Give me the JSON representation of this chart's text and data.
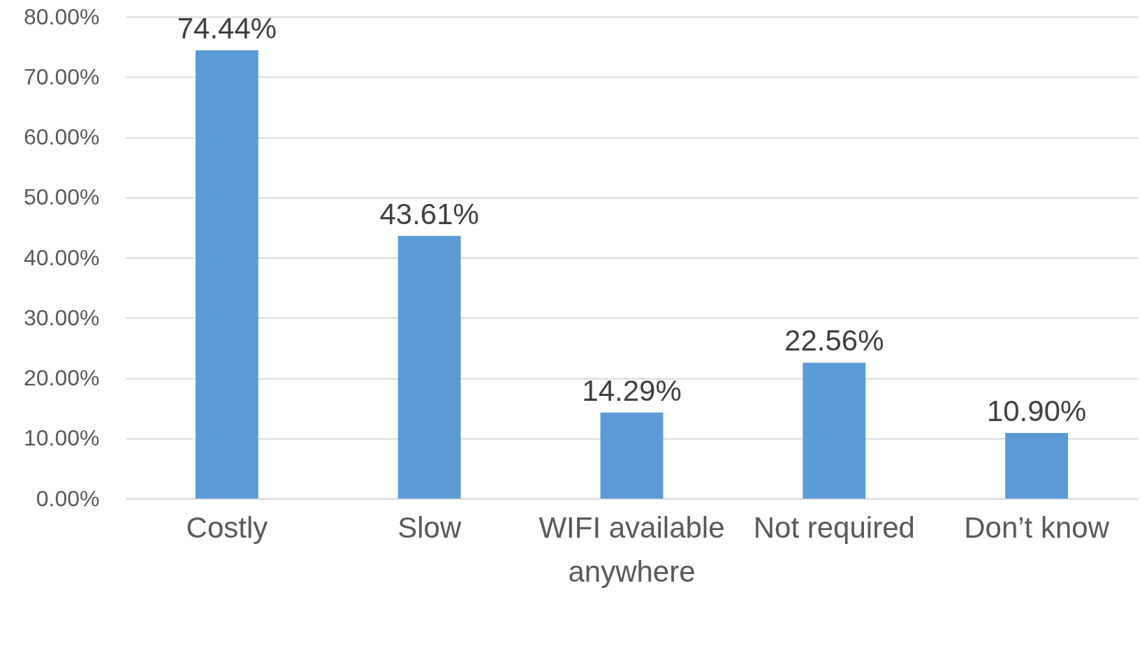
{
  "chart_data": {
    "type": "bar",
    "categories": [
      "Costly",
      "Slow",
      "WIFI available anywhere",
      "Not required",
      "Don’t know"
    ],
    "values": [
      74.44,
      43.61,
      14.29,
      22.56,
      10.9
    ],
    "value_labels": [
      "74.44%",
      "43.61%",
      "14.29%",
      "22.56%",
      "10.90%"
    ],
    "color": "#5b9bd5",
    "ylim": [
      0,
      80
    ],
    "yticks": [
      {
        "value": 0,
        "label": "0.00%"
      },
      {
        "value": 10,
        "label": "10.00%"
      },
      {
        "value": 20,
        "label": "20.00%"
      },
      {
        "value": 30,
        "label": "30.00%"
      },
      {
        "value": 40,
        "label": "40.00%"
      },
      {
        "value": 50,
        "label": "50.00%"
      },
      {
        "value": 60,
        "label": "60.00%"
      },
      {
        "value": 70,
        "label": "70.00%"
      },
      {
        "value": 80,
        "label": "80.00%"
      }
    ],
    "grid": "y"
  }
}
